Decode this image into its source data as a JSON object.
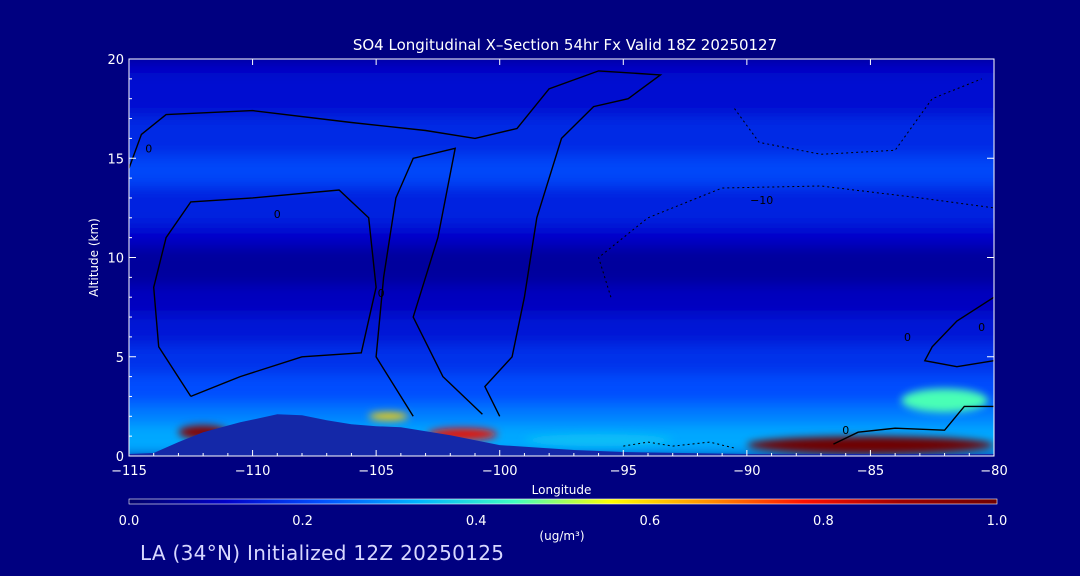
{
  "chart_data": {
    "type": "heatmap",
    "title": "SO4 Longitudinal X–Section 54hr  Fx Valid 18Z 20250127",
    "xlabel": "Longitude",
    "ylabel": "Altitude (km)",
    "xlim": [
      -115,
      -80
    ],
    "ylim": [
      0,
      20
    ],
    "x_ticks": [
      "−115",
      "−110",
      "−105",
      "−100",
      "−95",
      "−90",
      "−85",
      "−80"
    ],
    "x_tick_values": [
      -115,
      -110,
      -105,
      -100,
      -95,
      -90,
      -85,
      -80
    ],
    "y_ticks": [
      "0",
      "5",
      "10",
      "15",
      "20"
    ],
    "y_tick_values": [
      0,
      5,
      10,
      15,
      20
    ],
    "colorbar": {
      "min": 0.0,
      "max": 1.0,
      "tick_labels": [
        "0.0",
        "0.2",
        "0.4",
        "0.6",
        "0.8",
        "1.0"
      ],
      "tick_values": [
        0.0,
        0.2,
        0.4,
        0.6,
        0.8,
        1.0
      ],
      "units": "(ug/m³)",
      "colors": [
        "#00006a",
        "#0000c8",
        "#0050ff",
        "#00b4ff",
        "#40ffc0",
        "#ffff00",
        "#ff9000",
        "#ff1000",
        "#a00000",
        "#700000"
      ]
    },
    "terrain": {
      "color": "#1428a8",
      "points": [
        [
          -115,
          0.1
        ],
        [
          -114,
          0.15
        ],
        [
          -113,
          0.7
        ],
        [
          -112,
          1.2
        ],
        [
          -110.5,
          1.7
        ],
        [
          -109,
          2.1
        ],
        [
          -108,
          2.05
        ],
        [
          -107,
          1.8
        ],
        [
          -106,
          1.6
        ],
        [
          -105,
          1.5
        ],
        [
          -104,
          1.45
        ],
        [
          -103,
          1.25
        ],
        [
          -102,
          1.05
        ],
        [
          -100,
          0.55
        ],
        [
          -97,
          0.3
        ],
        [
          -95,
          0.2
        ],
        [
          -90,
          0.1
        ],
        [
          -85,
          0.1
        ],
        [
          -80,
          0.1
        ]
      ]
    },
    "concentration_bands": [
      {
        "z0": 19.2,
        "z1": 20.0,
        "value": 0.1
      },
      {
        "z0": 17.0,
        "z1": 19.2,
        "value": 0.13
      },
      {
        "z0": 15.0,
        "z1": 17.0,
        "value": 0.17
      },
      {
        "z0": 13.5,
        "z1": 15.0,
        "value": 0.21
      },
      {
        "z0": 11.5,
        "z1": 13.5,
        "value": 0.16
      },
      {
        "z0": 10.5,
        "z1": 11.5,
        "value": 0.12
      },
      {
        "z0": 8.5,
        "z1": 10.5,
        "value": 0.06
      },
      {
        "z0": 7.0,
        "z1": 8.5,
        "value": 0.1
      },
      {
        "z0": 5.5,
        "z1": 7.0,
        "value": 0.14
      },
      {
        "z0": 4.0,
        "z1": 5.5,
        "value": 0.18
      },
      {
        "z0": 2.5,
        "z1": 4.0,
        "value": 0.22
      },
      {
        "z0": 1.5,
        "z1": 2.5,
        "value": 0.27
      },
      {
        "z0": 0.0,
        "z1": 1.5,
        "value": 0.32
      }
    ],
    "plumes": [
      {
        "lon": -112.0,
        "alt": 1.2,
        "width": 2.0,
        "depth": 0.7,
        "value": 0.95
      },
      {
        "lon": -101.5,
        "alt": 1.1,
        "width": 2.8,
        "depth": 0.6,
        "value": 0.8
      },
      {
        "lon": -104.5,
        "alt": 2.0,
        "width": 1.6,
        "depth": 0.4,
        "value": 0.6
      },
      {
        "lon": -85.0,
        "alt": 0.55,
        "width": 10.0,
        "depth": 0.9,
        "value": 1.0
      },
      {
        "lon": -82.0,
        "alt": 2.8,
        "width": 3.5,
        "depth": 1.2,
        "value": 0.45
      },
      {
        "lon": -96.0,
        "alt": 0.8,
        "width": 6.0,
        "depth": 0.6,
        "value": 0.35
      }
    ],
    "contours": [
      {
        "label": "0",
        "style": "solid",
        "label_at": [
          -114.2,
          15.5
        ],
        "points": [
          [
            -115,
            14.5
          ],
          [
            -114.5,
            16.2
          ],
          [
            -113.5,
            17.2
          ],
          [
            -110,
            17.4
          ],
          [
            -106,
            16.8
          ],
          [
            -103,
            16.4
          ],
          [
            -101,
            16.0
          ],
          [
            -99.3,
            16.5
          ],
          [
            -98,
            18.5
          ],
          [
            -96,
            19.4
          ],
          [
            -93.5,
            19.2
          ],
          [
            -94.8,
            18.0
          ],
          [
            -96.2,
            17.6
          ],
          [
            -97.5,
            16.0
          ],
          [
            -98.5,
            12.0
          ],
          [
            -99.0,
            8.0
          ],
          [
            -99.5,
            5.0
          ],
          [
            -100.6,
            3.5
          ],
          [
            -100.0,
            2.0
          ]
        ]
      },
      {
        "label": "0",
        "style": "solid",
        "label_at": [
          -109.0,
          12.2
        ],
        "points": [
          [
            -112.5,
            3.0
          ],
          [
            -113.8,
            5.5
          ],
          [
            -114.0,
            8.5
          ],
          [
            -113.5,
            11.0
          ],
          [
            -112.5,
            12.8
          ],
          [
            -110.0,
            13.0
          ],
          [
            -106.5,
            13.4
          ],
          [
            -105.3,
            12.0
          ],
          [
            -105.0,
            8.5
          ],
          [
            -105.6,
            5.2
          ],
          [
            -108.0,
            5.0
          ],
          [
            -110.5,
            4.0
          ],
          [
            -112.5,
            3.0
          ]
        ]
      },
      {
        "label": "0",
        "style": "solid",
        "label_at": [
          -104.8,
          8.2
        ],
        "points": [
          [
            -103.5,
            2.0
          ],
          [
            -105.0,
            5.0
          ],
          [
            -104.7,
            9.0
          ],
          [
            -104.2,
            13.0
          ],
          [
            -103.5,
            15.0
          ],
          [
            -101.8,
            15.5
          ],
          [
            -102.5,
            11.0
          ],
          [
            -103.5,
            7.0
          ],
          [
            -102.3,
            4.0
          ],
          [
            -100.7,
            2.1
          ]
        ]
      },
      {
        "label": "0",
        "style": "solid",
        "label_at": [
          -86.0,
          1.3
        ],
        "points": [
          [
            -86.5,
            0.6
          ],
          [
            -85.5,
            1.2
          ],
          [
            -84.0,
            1.4
          ],
          [
            -82.0,
            1.3
          ],
          [
            -81.2,
            2.5
          ],
          [
            -80.0,
            2.5
          ]
        ]
      },
      {
        "label": "0",
        "style": "solid",
        "label_at": [
          -80.5,
          6.5
        ],
        "points": [
          [
            -80.0,
            8.0
          ],
          [
            -81.5,
            6.8
          ],
          [
            -82.5,
            5.5
          ],
          [
            -82.8,
            4.8
          ],
          [
            -81.5,
            4.5
          ],
          [
            -80.0,
            4.8
          ]
        ]
      },
      {
        "label": "−10",
        "style": "dashed",
        "label_at": [
          -89.4,
          12.9
        ],
        "points": [
          [
            -95.5,
            8.0
          ],
          [
            -96.0,
            10.0
          ],
          [
            -94.0,
            12.0
          ],
          [
            -91.0,
            13.5
          ],
          [
            -87.0,
            13.6
          ],
          [
            -83.0,
            13.0
          ],
          [
            -80.0,
            12.5
          ]
        ]
      },
      {
        "label": "0",
        "style": "dashed",
        "label_at": [
          -83.5,
          6.0
        ],
        "points": [
          [
            -95.0,
            0.5
          ],
          [
            -94.0,
            0.7
          ],
          [
            -93.0,
            0.5
          ],
          [
            -91.5,
            0.7
          ],
          [
            -90.5,
            0.4
          ]
        ]
      },
      {
        "label": "",
        "style": "dashed",
        "label_at": null,
        "points": [
          [
            -90.5,
            17.5
          ],
          [
            -89.5,
            15.8
          ],
          [
            -87.0,
            15.2
          ],
          [
            -84.0,
            15.4
          ],
          [
            -82.5,
            18.0
          ],
          [
            -80.5,
            19.0
          ]
        ]
      }
    ]
  },
  "footer": {
    "text": "LA (34°N) Initialized 12Z 20250125"
  }
}
